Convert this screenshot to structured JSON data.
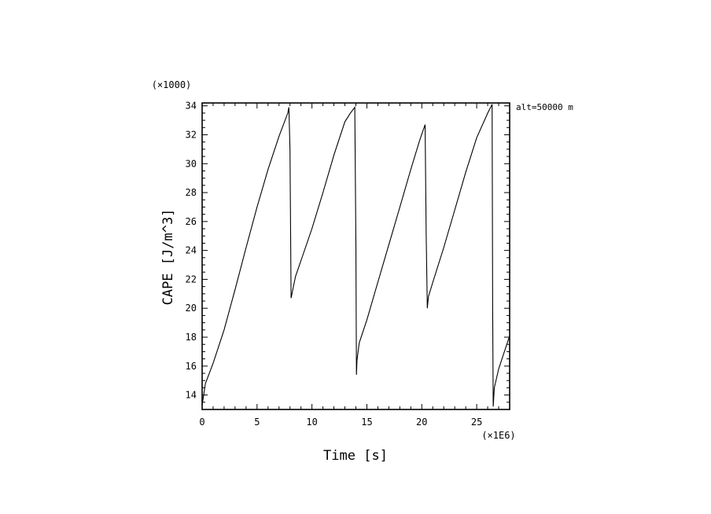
{
  "chart_data": {
    "type": "line",
    "xlabel": "Time [s]",
    "ylabel": "CAPE [J/m^3]",
    "x_multiplier_label": "(×1E6)",
    "y_multiplier_label": "(×1000)",
    "annotation": "alt=50000 m",
    "xlim": [
      0,
      28
    ],
    "ylim": [
      13,
      34.2
    ],
    "x_ticks": [
      0,
      5,
      10,
      15,
      20,
      25
    ],
    "y_ticks": [
      14,
      16,
      18,
      20,
      22,
      24,
      26,
      28,
      30,
      32,
      34
    ],
    "grid": false,
    "series": [
      {
        "line_color": "#000000",
        "x": [
          0,
          0.3,
          1,
          2,
          3,
          4,
          5,
          6,
          7,
          7.8,
          7.9,
          8.0,
          8.1,
          8.5,
          9,
          10,
          11,
          12,
          13,
          13.5,
          13.9,
          14.0,
          14.05,
          14.1,
          14.3,
          15,
          16,
          17,
          18,
          19,
          19.8,
          20.3,
          20.4,
          20.5,
          20.6,
          21,
          22,
          23,
          24,
          25,
          26,
          26.4,
          26.45,
          26.5,
          26.6,
          27,
          28
        ],
        "y": [
          13.3,
          14.8,
          16.2,
          18.5,
          21.3,
          24.2,
          27.0,
          29.6,
          31.9,
          33.5,
          33.9,
          31.0,
          20.7,
          22.2,
          23.3,
          25.5,
          28.0,
          30.6,
          32.9,
          33.5,
          33.9,
          24.5,
          15.4,
          16.4,
          17.6,
          19.2,
          21.8,
          24.4,
          27.0,
          29.6,
          31.6,
          32.7,
          25.0,
          20.0,
          20.8,
          21.8,
          24.2,
          26.8,
          29.4,
          31.8,
          33.5,
          34.1,
          20.0,
          13.2,
          14.5,
          15.8,
          18.1
        ]
      }
    ]
  }
}
